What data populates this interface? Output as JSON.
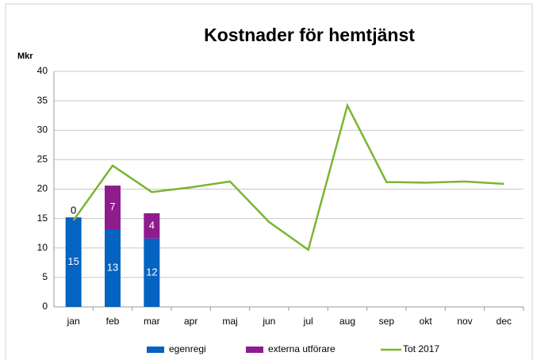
{
  "chart_data": {
    "type": "bar",
    "stacked": true,
    "title": "Kostnader för hemtjänst",
    "y_label": "Mkr",
    "categories": [
      "jan",
      "feb",
      "mar",
      "apr",
      "maj",
      "jun",
      "jul",
      "aug",
      "sep",
      "okt",
      "nov",
      "dec"
    ],
    "series": [
      {
        "name": "egenregi",
        "type": "bar",
        "color": "#0563c1",
        "values": [
          15.2,
          13.2,
          11.6,
          null,
          null,
          null,
          null,
          null,
          null,
          null,
          null,
          null
        ],
        "value_labels": [
          "15",
          "13",
          "12",
          null,
          null,
          null,
          null,
          null,
          null,
          null,
          null,
          null
        ]
      },
      {
        "name": "externa utförare",
        "type": "bar",
        "color": "#8e1c8c",
        "values": [
          0,
          7.4,
          4.3,
          null,
          null,
          null,
          null,
          null,
          null,
          null,
          null,
          null
        ],
        "value_labels": [
          "0",
          "7",
          "4",
          null,
          null,
          null,
          null,
          null,
          null,
          null,
          null,
          null
        ]
      },
      {
        "name": "Tot 2017",
        "type": "line",
        "color": "#7ab532",
        "values": [
          14.7,
          24,
          19.5,
          20.3,
          21.3,
          14.4,
          9.7,
          34.2,
          21.2,
          21.1,
          21.3,
          20.9
        ]
      }
    ],
    "ylim": [
      0,
      40
    ],
    "yticks": [
      0,
      5,
      10,
      15,
      20,
      25,
      30,
      35,
      40
    ],
    "grid": true,
    "legend": "bottom"
  }
}
